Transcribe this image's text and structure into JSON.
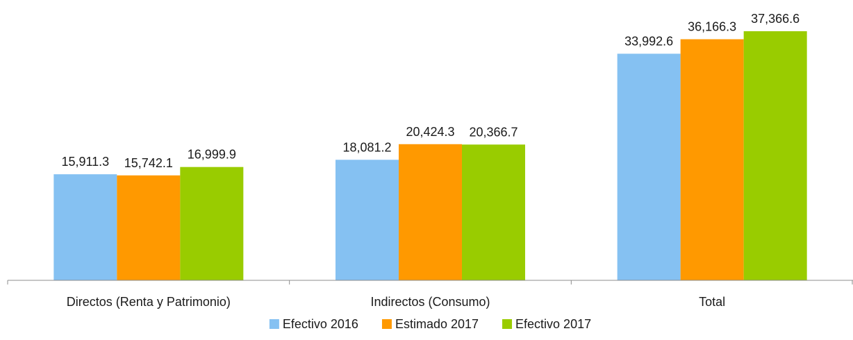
{
  "chart_data": {
    "type": "bar",
    "categories": [
      "Directos (Renta y Patrimonio)",
      "Indirectos (Consumo)",
      "Total"
    ],
    "series": [
      {
        "name": "Efectivo 2016",
        "color": "#85c1f2",
        "values": [
          15911.3,
          18081.2,
          33992.6
        ],
        "labels": [
          "15,911.3",
          "18,081.2",
          "33,992.6"
        ]
      },
      {
        "name": "Estimado 2017",
        "color": "#ff9900",
        "values": [
          15742.1,
          20424.3,
          36166.3
        ],
        "labels": [
          "15,742.1",
          "20,424.3",
          "36,166.3"
        ]
      },
      {
        "name": "Efectivo 2017",
        "color": "#99cc00",
        "values": [
          16999.9,
          20366.7,
          37366.6
        ],
        "labels": [
          "16,999.9",
          "20,366.7",
          "37,366.6"
        ]
      }
    ],
    "ylim": [
      0,
      40000
    ],
    "grid": false,
    "legend_position": "bottom"
  }
}
